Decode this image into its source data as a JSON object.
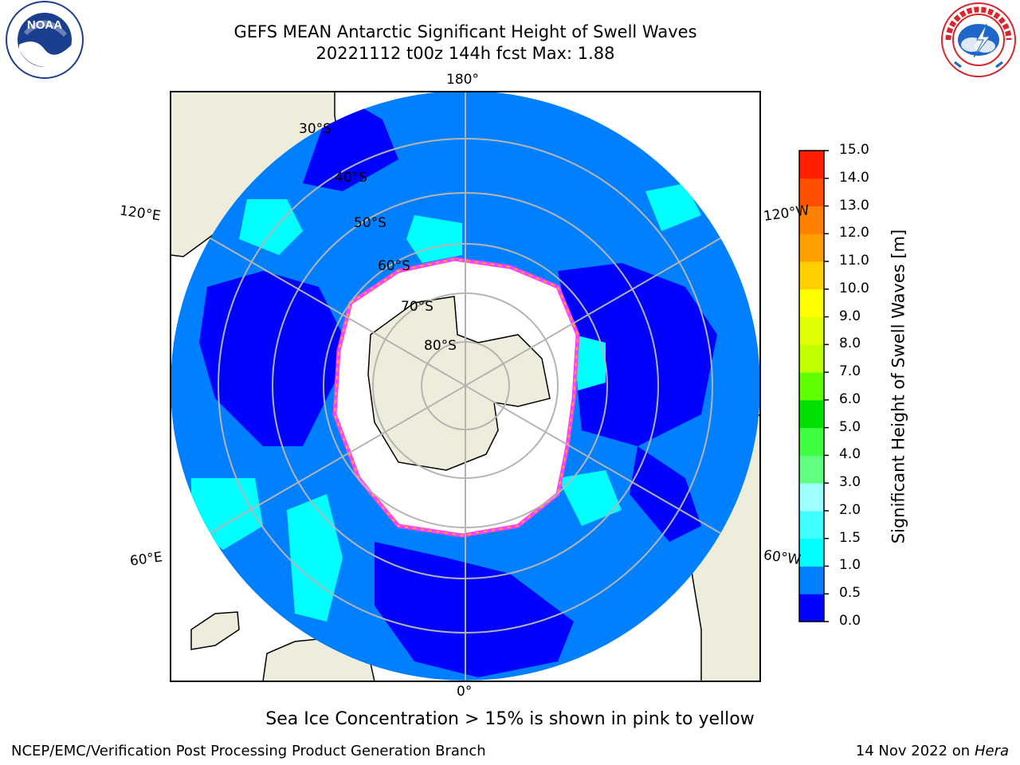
{
  "header": {
    "title_line1": "GEFS MEAN Antarctic Significant Height of Swell Waves",
    "title_line2": "20221112 t00z 144h fcst   Max: 1.88"
  },
  "logos": {
    "left": {
      "name": "noaa-logo",
      "text": "NOAA",
      "ring_text": "NATIONAL OCEANIC AND ATMOSPHERIC ADMINISTRATION · U.S. DEPARTMENT OF COMMERCE"
    },
    "right": {
      "name": "nws-logo",
      "ring_text": "NATIONAL WEATHER SERVICE"
    }
  },
  "map": {
    "projection": "south polar stereographic",
    "longitude_labels": {
      "top": "180°",
      "bottom": "0°",
      "upper_left": "120°E",
      "upper_right": "120°W",
      "lower_left": "60°E",
      "lower_right": "60°W"
    },
    "latitude_labels": [
      "30°S",
      "40°S",
      "50°S",
      "60°S",
      "70°S",
      "80°S"
    ]
  },
  "colorbar": {
    "label": "Significant Height of Swell Waves [m]",
    "ticks": [
      "0.0",
      "0.5",
      "1.0",
      "1.5",
      "2.0",
      "3.0",
      "4.0",
      "5.0",
      "6.0",
      "7.0",
      "8.0",
      "9.0",
      "10.0",
      "11.0",
      "12.0",
      "13.0",
      "14.0",
      "15.0"
    ],
    "colors": [
      "#0000ff",
      "#0080ff",
      "#00ffff",
      "#40ffff",
      "#a0ffff",
      "#60ff80",
      "#40ff40",
      "#00e000",
      "#60ff00",
      "#c0ff00",
      "#e0ff00",
      "#ffff00",
      "#ffd000",
      "#ffa000",
      "#ff8000",
      "#ff5000",
      "#ff2000"
    ]
  },
  "caption": "Sea Ice Concentration > 15% is shown in pink to yellow",
  "footer": {
    "left": "NCEP/EMC/Verification Post Processing Product Generation Branch",
    "right_date": "14 Nov 2022 on",
    "right_machine": "Hera"
  },
  "colors": {
    "land": "#eeeddb",
    "ocean_low": "#0000ff",
    "ocean_mid": "#0080ff",
    "ocean_high": "#00ffff",
    "ice_edge": "#ff40ff",
    "ice": "#ffffff"
  }
}
